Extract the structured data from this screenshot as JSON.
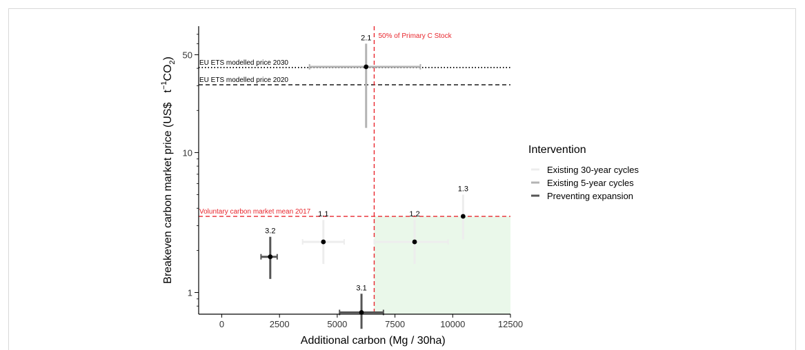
{
  "chart_data": {
    "type": "scatter",
    "x_axis": {
      "label": "Additional carbon (Mg / 30ha)",
      "range": [
        -1000,
        12500
      ],
      "ticks": [
        0,
        2500,
        5000,
        7500,
        10000,
        12500
      ],
      "tick_labels": [
        "0",
        "2500",
        "5000",
        "7500",
        "10000",
        "12500"
      ]
    },
    "y_axis": {
      "label": "Breakeven carbon market price (US$",
      "unit": "CO",
      "unit_superscript": "−1",
      "unit_t": "t",
      "unit_subscript": "2",
      "label_close": ")",
      "scale": "log",
      "range": [
        0.7,
        80
      ],
      "ticks": [
        1,
        10,
        50
      ],
      "tick_labels": [
        "1",
        "10",
        "50"
      ]
    },
    "grid": false,
    "legend": {
      "title": "Intervention",
      "placement": "right",
      "entries": [
        {
          "name": "Existing 30-year cycles",
          "color": "#ededed"
        },
        {
          "name": "Existing 5-year cycles",
          "color": "#b3b3b3"
        },
        {
          "name": "Preventing expansion",
          "color": "#555555"
        }
      ]
    },
    "points": [
      {
        "label": "1.1",
        "group": "Existing 30-year cycles",
        "x": 4400,
        "y": 2.3,
        "xerr": [
          3500,
          5300
        ],
        "yerr": [
          1.6,
          3.3
        ]
      },
      {
        "label": "1.2",
        "group": "Existing 30-year cycles",
        "x": 8350,
        "y": 2.3,
        "xerr": [
          6600,
          9800
        ],
        "yerr": [
          1.6,
          3.3
        ]
      },
      {
        "label": "1.3",
        "group": "Existing 30-year cycles",
        "x": 10450,
        "y": 3.5,
        "xerr": [
          10450,
          10450
        ],
        "yerr": [
          2.4,
          5.0
        ]
      },
      {
        "label": "2.1",
        "group": "Existing 5-year cycles",
        "x": 6250,
        "y": 41,
        "xerr": [
          3800,
          8600
        ],
        "yerr": [
          15,
          60
        ]
      },
      {
        "label": "3.1",
        "group": "Preventing expansion",
        "x": 6050,
        "y": 0.72,
        "xerr": [
          5100,
          7000
        ],
        "yerr": [
          0.55,
          0.98
        ]
      },
      {
        "label": "3.2",
        "group": "Preventing expansion",
        "x": 2100,
        "y": 1.8,
        "xerr": [
          1700,
          2400
        ],
        "yerr": [
          1.25,
          2.5
        ]
      }
    ],
    "reference_lines": [
      {
        "orientation": "horizontal",
        "value": 40.5,
        "style": "dotted",
        "color": "#000000",
        "label": "EU ETS modelled price 2030"
      },
      {
        "orientation": "horizontal",
        "value": 30.5,
        "style": "dashed",
        "color": "#000000",
        "label": "EU ETS modelled price 2020"
      },
      {
        "orientation": "horizontal",
        "value": 3.5,
        "style": "dashed",
        "color": "#e8262d",
        "label": "Voluntary carbon market mean 2017"
      },
      {
        "orientation": "vertical",
        "value": 6600,
        "style": "dashed",
        "color": "#e8262d",
        "label": "50% of Primary C Stock"
      }
    ],
    "shaded_region": {
      "x": [
        6600,
        12500
      ],
      "y": [
        0.7,
        3.5
      ],
      "color": "#eaf8ea"
    }
  }
}
